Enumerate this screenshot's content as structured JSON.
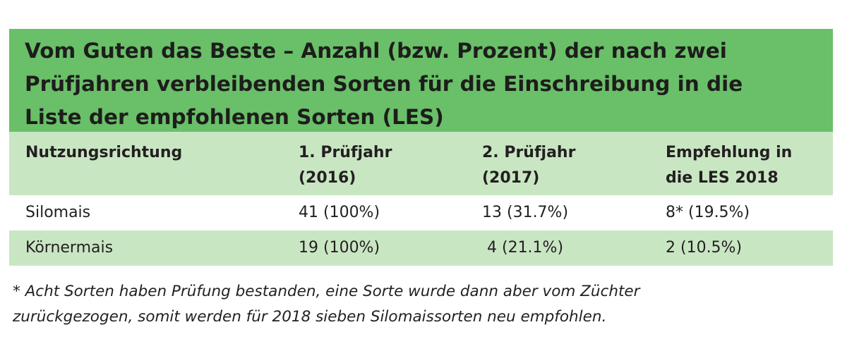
{
  "title": {
    "line1": "Vom Guten das Beste – Anzahl (bzw. Prozent) der nach zwei",
    "line2": "Prüfjahren verbleibenden Sorten für die Einschreibung in die",
    "line3": "Liste der empfohlenen Sorten (LES)"
  },
  "header": {
    "col1": "Nutzungsrichtung",
    "col2_line1": "1. Prüfjahr",
    "col2_line2": "(2016)",
    "col3_line1": "2. Prüfjahr",
    "col3_line2": "(2017)",
    "col4_line1": "Empfehlung in",
    "col4_line2": "die LES 2018"
  },
  "rows": [
    {
      "name": "Silomais",
      "year1": "41 (100%)",
      "year2": "13 (31.7%)",
      "les": "8* (19.5%)"
    },
    {
      "name": "Körnermais",
      "year1": "19 (100%)",
      "year2": " 4 (21.1%)",
      "les": "2 (10.5%)"
    }
  ],
  "footnote": {
    "line1": "* Acht Sorten haben Prüfung bestanden, eine Sorte wurde dann aber vom Züchter",
    "line2": "zurückgezogen, somit werden für 2018 sieben Silomaissorten neu empfohlen."
  },
  "colors": {
    "title_bg": "#6abf69",
    "header_bg": "#c9e6c3",
    "text": "#231f20"
  }
}
